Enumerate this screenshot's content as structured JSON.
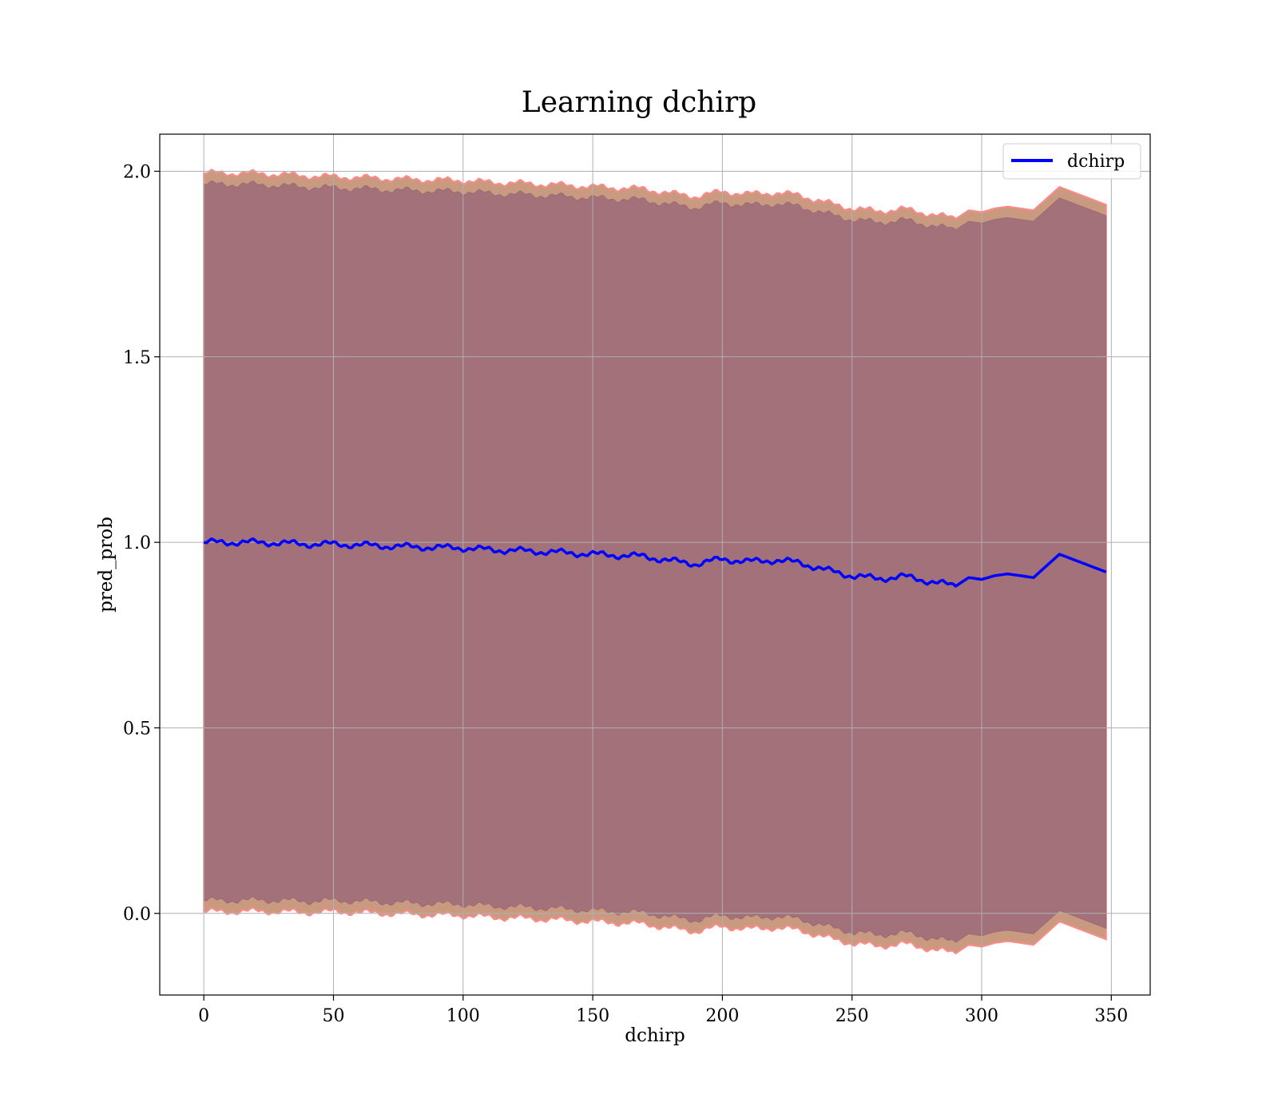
{
  "chart_data": {
    "type": "area",
    "title": "Learning dchirp",
    "xlabel": "dchirp",
    "ylabel": "pred_prob",
    "xlim": [
      -17,
      365
    ],
    "ylim": [
      -0.22,
      2.1
    ],
    "xticks": [
      0,
      50,
      100,
      150,
      200,
      250,
      300,
      350
    ],
    "yticks": [
      0.0,
      0.5,
      1.0,
      1.5,
      2.0
    ],
    "grid": true,
    "legend_position": "top-right",
    "colors": {
      "line": "#0000ff",
      "inner_band": "#a3717a",
      "outer_band": "#c99a80",
      "band_edge": "#ff8a8a",
      "grid": "#b0b0b0"
    },
    "series": [
      {
        "name": "dchirp",
        "x": [
          0,
          10,
          20,
          30,
          40,
          50,
          60,
          70,
          80,
          90,
          100,
          110,
          120,
          130,
          140,
          150,
          160,
          170,
          180,
          190,
          200,
          210,
          220,
          230,
          240,
          250,
          260,
          270,
          280,
          290,
          295,
          300,
          305,
          310,
          320,
          330,
          348
        ],
        "y": [
          1.0,
          1.0,
          1.0,
          0.998,
          0.995,
          0.995,
          0.993,
          0.99,
          0.988,
          0.986,
          0.985,
          0.98,
          0.978,
          0.975,
          0.972,
          0.968,
          0.965,
          0.962,
          0.95,
          0.942,
          0.955,
          0.948,
          0.952,
          0.945,
          0.925,
          0.91,
          0.902,
          0.908,
          0.895,
          0.882,
          0.905,
          0.9,
          0.91,
          0.915,
          0.905,
          0.968,
          0.92
        ],
        "band_outer_halfwidth": [
          0.995,
          0.995,
          0.994,
          0.993,
          0.992,
          0.99,
          0.99,
          0.99,
          0.99,
          0.99,
          0.99,
          0.99,
          0.99,
          0.99,
          0.99,
          0.99,
          0.99,
          0.99,
          0.99,
          0.99,
          0.99,
          0.99,
          0.99,
          0.99,
          0.99,
          0.99,
          0.99,
          0.99,
          0.99,
          0.99,
          0.99,
          0.99,
          0.99,
          0.99,
          0.99,
          0.99,
          0.99
        ],
        "band_inner_halfwidth": [
          0.965,
          0.965,
          0.964,
          0.963,
          0.962,
          0.96,
          0.96,
          0.96,
          0.96,
          0.96,
          0.96,
          0.96,
          0.96,
          0.96,
          0.96,
          0.96,
          0.96,
          0.96,
          0.96,
          0.96,
          0.96,
          0.96,
          0.96,
          0.96,
          0.96,
          0.96,
          0.96,
          0.96,
          0.96,
          0.96,
          0.96,
          0.96,
          0.96,
          0.96,
          0.96,
          0.96,
          0.96
        ]
      }
    ]
  }
}
